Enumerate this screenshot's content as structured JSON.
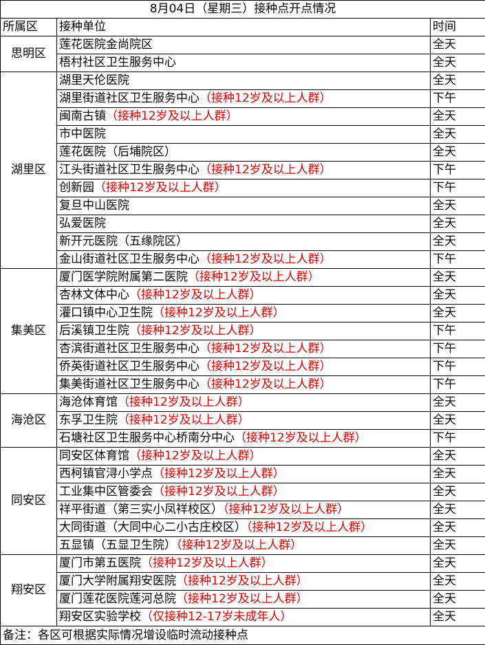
{
  "title": "8月04日（星期三）接种点开点情况",
  "headers": [
    "所属区",
    "接种单位",
    "时间"
  ],
  "note_color": "#e00000",
  "groups": [
    {
      "district": "思明区",
      "rows": [
        {
          "name": "莲花医院金尚院区",
          "note": "",
          "time": "全天"
        },
        {
          "name": "梧村社区卫生服务中心",
          "note": "",
          "time": "全天"
        }
      ]
    },
    {
      "district": "湖里区",
      "rows": [
        {
          "name": "湖里天伦医院",
          "note": "",
          "time": "全天"
        },
        {
          "name": "湖里街道社区卫生服务中心",
          "note": "（接种12岁及以上人群）",
          "time": "下午"
        },
        {
          "name": "闽南古镇",
          "note": "（接种12岁及以上人群）",
          "time": "全天"
        },
        {
          "name": "市中医院",
          "note": "",
          "time": "全天"
        },
        {
          "name": "莲花医院（后埔院区）",
          "note": "",
          "time": "全天"
        },
        {
          "name": "江头街道社区卫生服务中心",
          "note": "（接种12岁及以上人群）",
          "time": "下午"
        },
        {
          "name": "创新园",
          "note": "（接种12岁及以上人群）",
          "time": "下午"
        },
        {
          "name": "复旦中山医院",
          "note": "",
          "time": "全天"
        },
        {
          "name": "弘爱医院",
          "note": "",
          "time": "全天"
        },
        {
          "name": "新开元医院（五缘院区）",
          "note": "",
          "time": "全天"
        },
        {
          "name": "金山街道社区卫生服务中心",
          "note": "（接种12岁及以上人群）",
          "time": "下午"
        }
      ]
    },
    {
      "district": "集美区",
      "rows": [
        {
          "name": "厦门医学院附属第二医院",
          "note": "（接种12岁及以上人群）",
          "time": "全天"
        },
        {
          "name": "杏林文体中心",
          "note": "（接种12岁及以上人群）",
          "time": "全天"
        },
        {
          "name": "灌口镇中心卫生院",
          "note": "（接种12岁及以上人群）",
          "time": "全天"
        },
        {
          "name": "后溪镇卫生院",
          "note": "（接种12岁及以上人群）",
          "time": "下午"
        },
        {
          "name": "杏滨街道社区卫生服务中心",
          "note": "（接种12岁及以上人群）",
          "time": "下午"
        },
        {
          "name": "侨英街道社区卫生服务中心",
          "note": "（接种12岁及以上人群）",
          "time": "下午"
        },
        {
          "name": "集美街道社区卫生服务中心",
          "note": "（接种12岁及以上人群）",
          "time": "下午"
        }
      ]
    },
    {
      "district": "海沧区",
      "rows": [
        {
          "name": "海沧体育馆",
          "note": "（接种12岁及以上人群）",
          "time": "全天"
        },
        {
          "name": "东孚卫生院",
          "note": "（接种12岁及以上人群）",
          "time": "全天"
        },
        {
          "name": "石塘社区卫生服务中心桥南分中心",
          "note": "（接种12岁及以上人群）",
          "time": "下午"
        }
      ]
    },
    {
      "district": "同安区",
      "rows": [
        {
          "name": "同安区体育馆",
          "note": "（接种12岁及以上人群）",
          "time": "全天"
        },
        {
          "name": "西柯镇官浔小学点",
          "note": "（接种12岁及以上人群）",
          "time": "全天"
        },
        {
          "name": "工业集中区管委会",
          "note": "（接种12岁及以上人群）",
          "time": "全天"
        },
        {
          "name": "祥平街道（第三实小凤祥校区）",
          "note": "（接种12岁及以上人群）",
          "time": "全天"
        },
        {
          "name": "大同街道（大同中心二小古庄校区）",
          "note": "（接种12岁及以上人群）",
          "time": "全天"
        },
        {
          "name": "五显镇（五显卫生院）",
          "note": "（接种12岁及以上人群）",
          "time": "全天"
        }
      ]
    },
    {
      "district": "翔安区",
      "rows": [
        {
          "name": "厦门市第五医院",
          "note": "（接种12岁及以上人群）",
          "time": "全天"
        },
        {
          "name": "厦门大学附属翔安医院",
          "note": "（接种12岁及以上人群）",
          "time": "全天"
        },
        {
          "name": "厦门莲花医院莲河总院",
          "note": "（接种12岁及以上人群）",
          "time": "全天"
        },
        {
          "name": "翔安区实验学校",
          "note": "（仅接种12-17岁未成年人）",
          "time": "全天"
        }
      ]
    }
  ],
  "footnote": "备注：各区可根据实际情况增设临时流动接种点"
}
